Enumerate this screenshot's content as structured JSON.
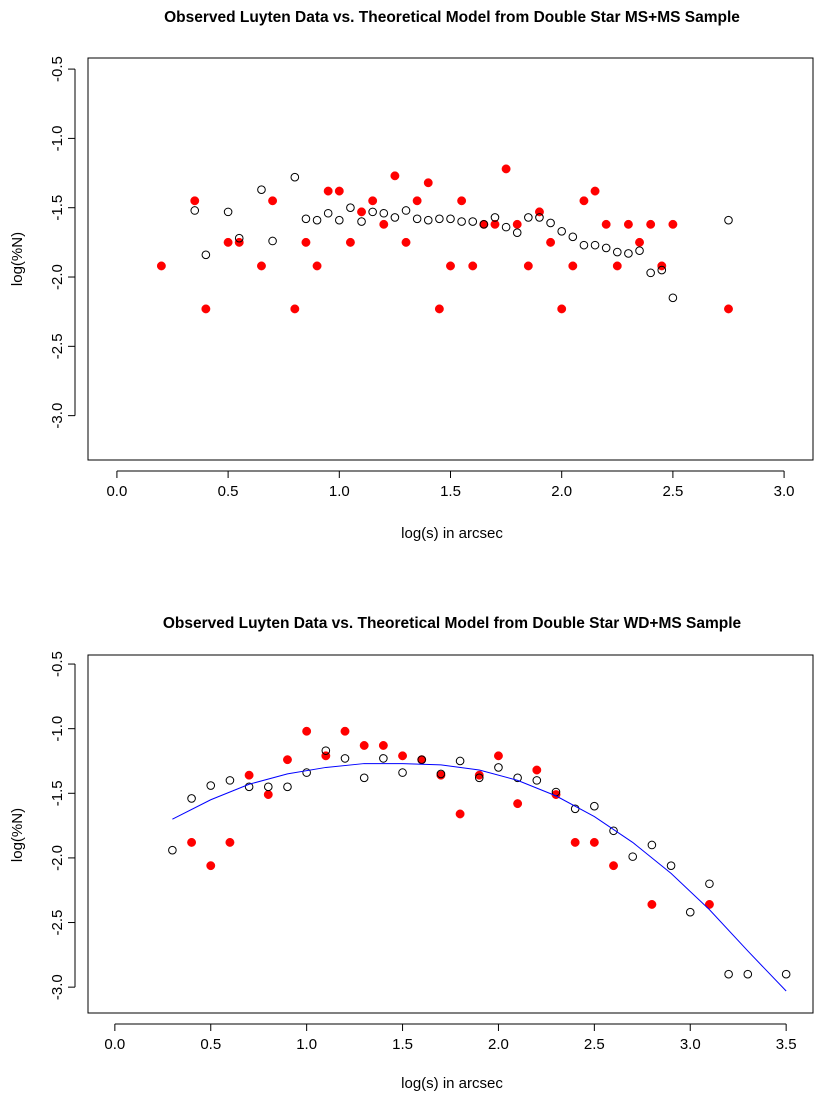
{
  "chart_data": [
    {
      "type": "scatter",
      "title": "Observed Luyten Data vs. Theoretical Model from Double Star  MS+MS Sample",
      "xlabel": "log(s) in arcsec",
      "ylabel": "log(%N)",
      "xlim": [
        -0.13,
        3.13
      ],
      "ylim": [
        -3.32,
        -0.42
      ],
      "xticks": [
        0.0,
        0.5,
        1.0,
        1.5,
        2.0,
        2.5,
        3.0
      ],
      "xtick_labels": [
        "0.0",
        "0.5",
        "1.0",
        "1.5",
        "2.0",
        "2.5",
        "3.0"
      ],
      "yticks": [
        -0.5,
        -1.0,
        -1.5,
        -2.0,
        -2.5,
        -3.0
      ],
      "ytick_labels": [
        "-0.5",
        "-1.0",
        "-1.5",
        "-2.0",
        "-2.5",
        "-3.0"
      ],
      "colors": {
        "observed": "#ff0000",
        "model": "#000000"
      },
      "series": [
        {
          "type": "scatter-filled",
          "x": [
            0.2,
            0.35,
            0.4,
            0.5,
            0.55,
            0.65,
            0.7,
            0.8,
            0.85,
            0.9,
            0.95,
            1.0,
            1.05,
            1.1,
            1.15,
            1.2,
            1.25,
            1.3,
            1.35,
            1.4,
            1.45,
            1.5,
            1.55,
            1.6,
            1.65,
            1.7,
            1.75,
            1.8,
            1.85,
            1.9,
            1.95,
            2.0,
            2.05,
            2.1,
            2.15,
            2.2,
            2.25,
            2.3,
            2.35,
            2.4,
            2.45,
            2.5,
            2.75
          ],
          "y": [
            -1.92,
            -1.45,
            -2.23,
            -1.75,
            -1.75,
            -1.92,
            -1.45,
            -2.23,
            -1.75,
            -1.92,
            -1.38,
            -1.38,
            -1.75,
            -1.53,
            -1.45,
            -1.62,
            -1.27,
            -1.75,
            -1.45,
            -1.32,
            -2.23,
            -1.92,
            -1.45,
            -1.92,
            -1.62,
            -1.62,
            -1.22,
            -1.62,
            -1.92,
            -1.53,
            -1.75,
            -2.23,
            -1.92,
            -1.45,
            -1.38,
            -1.62,
            -1.92,
            -1.62,
            -1.75,
            -1.62,
            -1.92,
            -1.62,
            -2.23
          ]
        },
        {
          "type": "scatter-open",
          "x": [
            0.35,
            0.4,
            0.5,
            0.55,
            0.65,
            0.7,
            0.8,
            0.85,
            0.9,
            0.95,
            1.0,
            1.05,
            1.1,
            1.15,
            1.2,
            1.25,
            1.3,
            1.35,
            1.4,
            1.45,
            1.5,
            1.55,
            1.6,
            1.65,
            1.7,
            1.75,
            1.8,
            1.85,
            1.9,
            1.95,
            2.0,
            2.05,
            2.1,
            2.15,
            2.2,
            2.25,
            2.3,
            2.35,
            2.4,
            2.45,
            2.5,
            2.75
          ],
          "y": [
            -1.52,
            -1.84,
            -1.53,
            -1.72,
            -1.37,
            -1.74,
            -1.28,
            -1.58,
            -1.59,
            -1.54,
            -1.59,
            -1.5,
            -1.6,
            -1.53,
            -1.54,
            -1.57,
            -1.52,
            -1.58,
            -1.59,
            -1.58,
            -1.58,
            -1.6,
            -1.6,
            -1.62,
            -1.57,
            -1.64,
            -1.68,
            -1.57,
            -1.57,
            -1.61,
            -1.67,
            -1.71,
            -1.77,
            -1.77,
            -1.79,
            -1.82,
            -1.83,
            -1.81,
            -1.97,
            -1.95,
            -2.15,
            -1.59
          ]
        }
      ]
    },
    {
      "type": "scatter",
      "title": "Observed Luyten Data vs. Theoretical Model from Double Star  WD+MS Sample",
      "xlabel": "log(s) in arcsec",
      "ylabel": "log(%N)",
      "xlim": [
        -0.14,
        3.64
      ],
      "ylim": [
        -3.2,
        -0.43
      ],
      "xticks": [
        0.0,
        0.5,
        1.0,
        1.5,
        2.0,
        2.5,
        3.0,
        3.5
      ],
      "xtick_labels": [
        "0.0",
        "0.5",
        "1.0",
        "1.5",
        "2.0",
        "2.5",
        "3.0",
        "3.5"
      ],
      "yticks": [
        -0.5,
        -1.0,
        -1.5,
        -2.0,
        -2.5,
        -3.0
      ],
      "ytick_labels": [
        "-0.5",
        "-1.0",
        "-1.5",
        "-2.0",
        "-2.5",
        "-3.0"
      ],
      "colors": {
        "observed": "#ff0000",
        "model": "#000000",
        "fit": "#0000ff"
      },
      "series": [
        {
          "type": "scatter-filled",
          "x": [
            0.4,
            0.5,
            0.6,
            0.7,
            0.8,
            0.9,
            1.0,
            1.1,
            1.2,
            1.3,
            1.4,
            1.5,
            1.6,
            1.7,
            1.8,
            1.9,
            2.0,
            2.1,
            2.2,
            2.3,
            2.4,
            2.5,
            2.6,
            2.8,
            3.1
          ],
          "y": [
            -1.88,
            -2.06,
            -1.88,
            -1.36,
            -1.51,
            -1.24,
            -1.02,
            -1.21,
            -1.02,
            -1.13,
            -1.13,
            -1.21,
            -1.24,
            -1.36,
            -1.66,
            -1.36,
            -1.21,
            -1.58,
            -1.32,
            -1.51,
            -1.88,
            -1.88,
            -2.06,
            -2.36,
            -2.36
          ]
        },
        {
          "type": "scatter-open",
          "x": [
            0.3,
            0.4,
            0.5,
            0.6,
            0.7,
            0.8,
            0.9,
            1.0,
            1.1,
            1.2,
            1.3,
            1.4,
            1.5,
            1.6,
            1.7,
            1.8,
            1.9,
            2.0,
            2.1,
            2.2,
            2.3,
            2.4,
            2.5,
            2.6,
            2.7,
            2.8,
            2.9,
            3.0,
            3.1,
            3.2,
            3.3,
            3.5
          ],
          "y": [
            -1.94,
            -1.54,
            -1.44,
            -1.4,
            -1.45,
            -1.45,
            -1.45,
            -1.34,
            -1.17,
            -1.23,
            -1.38,
            -1.23,
            -1.34,
            -1.24,
            -1.35,
            -1.25,
            -1.38,
            -1.3,
            -1.38,
            -1.4,
            -1.49,
            -1.62,
            -1.6,
            -1.79,
            -1.99,
            -1.9,
            -2.06,
            -2.42,
            -2.2,
            -2.9,
            -2.9,
            -2.9
          ]
        },
        {
          "type": "line",
          "x": [
            0.3,
            0.5,
            0.7,
            0.9,
            1.1,
            1.3,
            1.5,
            1.7,
            1.9,
            2.1,
            2.3,
            2.5,
            2.7,
            2.9,
            3.1,
            3.3,
            3.5
          ],
          "y": [
            -1.7,
            -1.55,
            -1.43,
            -1.35,
            -1.3,
            -1.27,
            -1.27,
            -1.28,
            -1.32,
            -1.4,
            -1.52,
            -1.68,
            -1.88,
            -2.12,
            -2.4,
            -2.72,
            -3.03
          ]
        }
      ]
    }
  ]
}
